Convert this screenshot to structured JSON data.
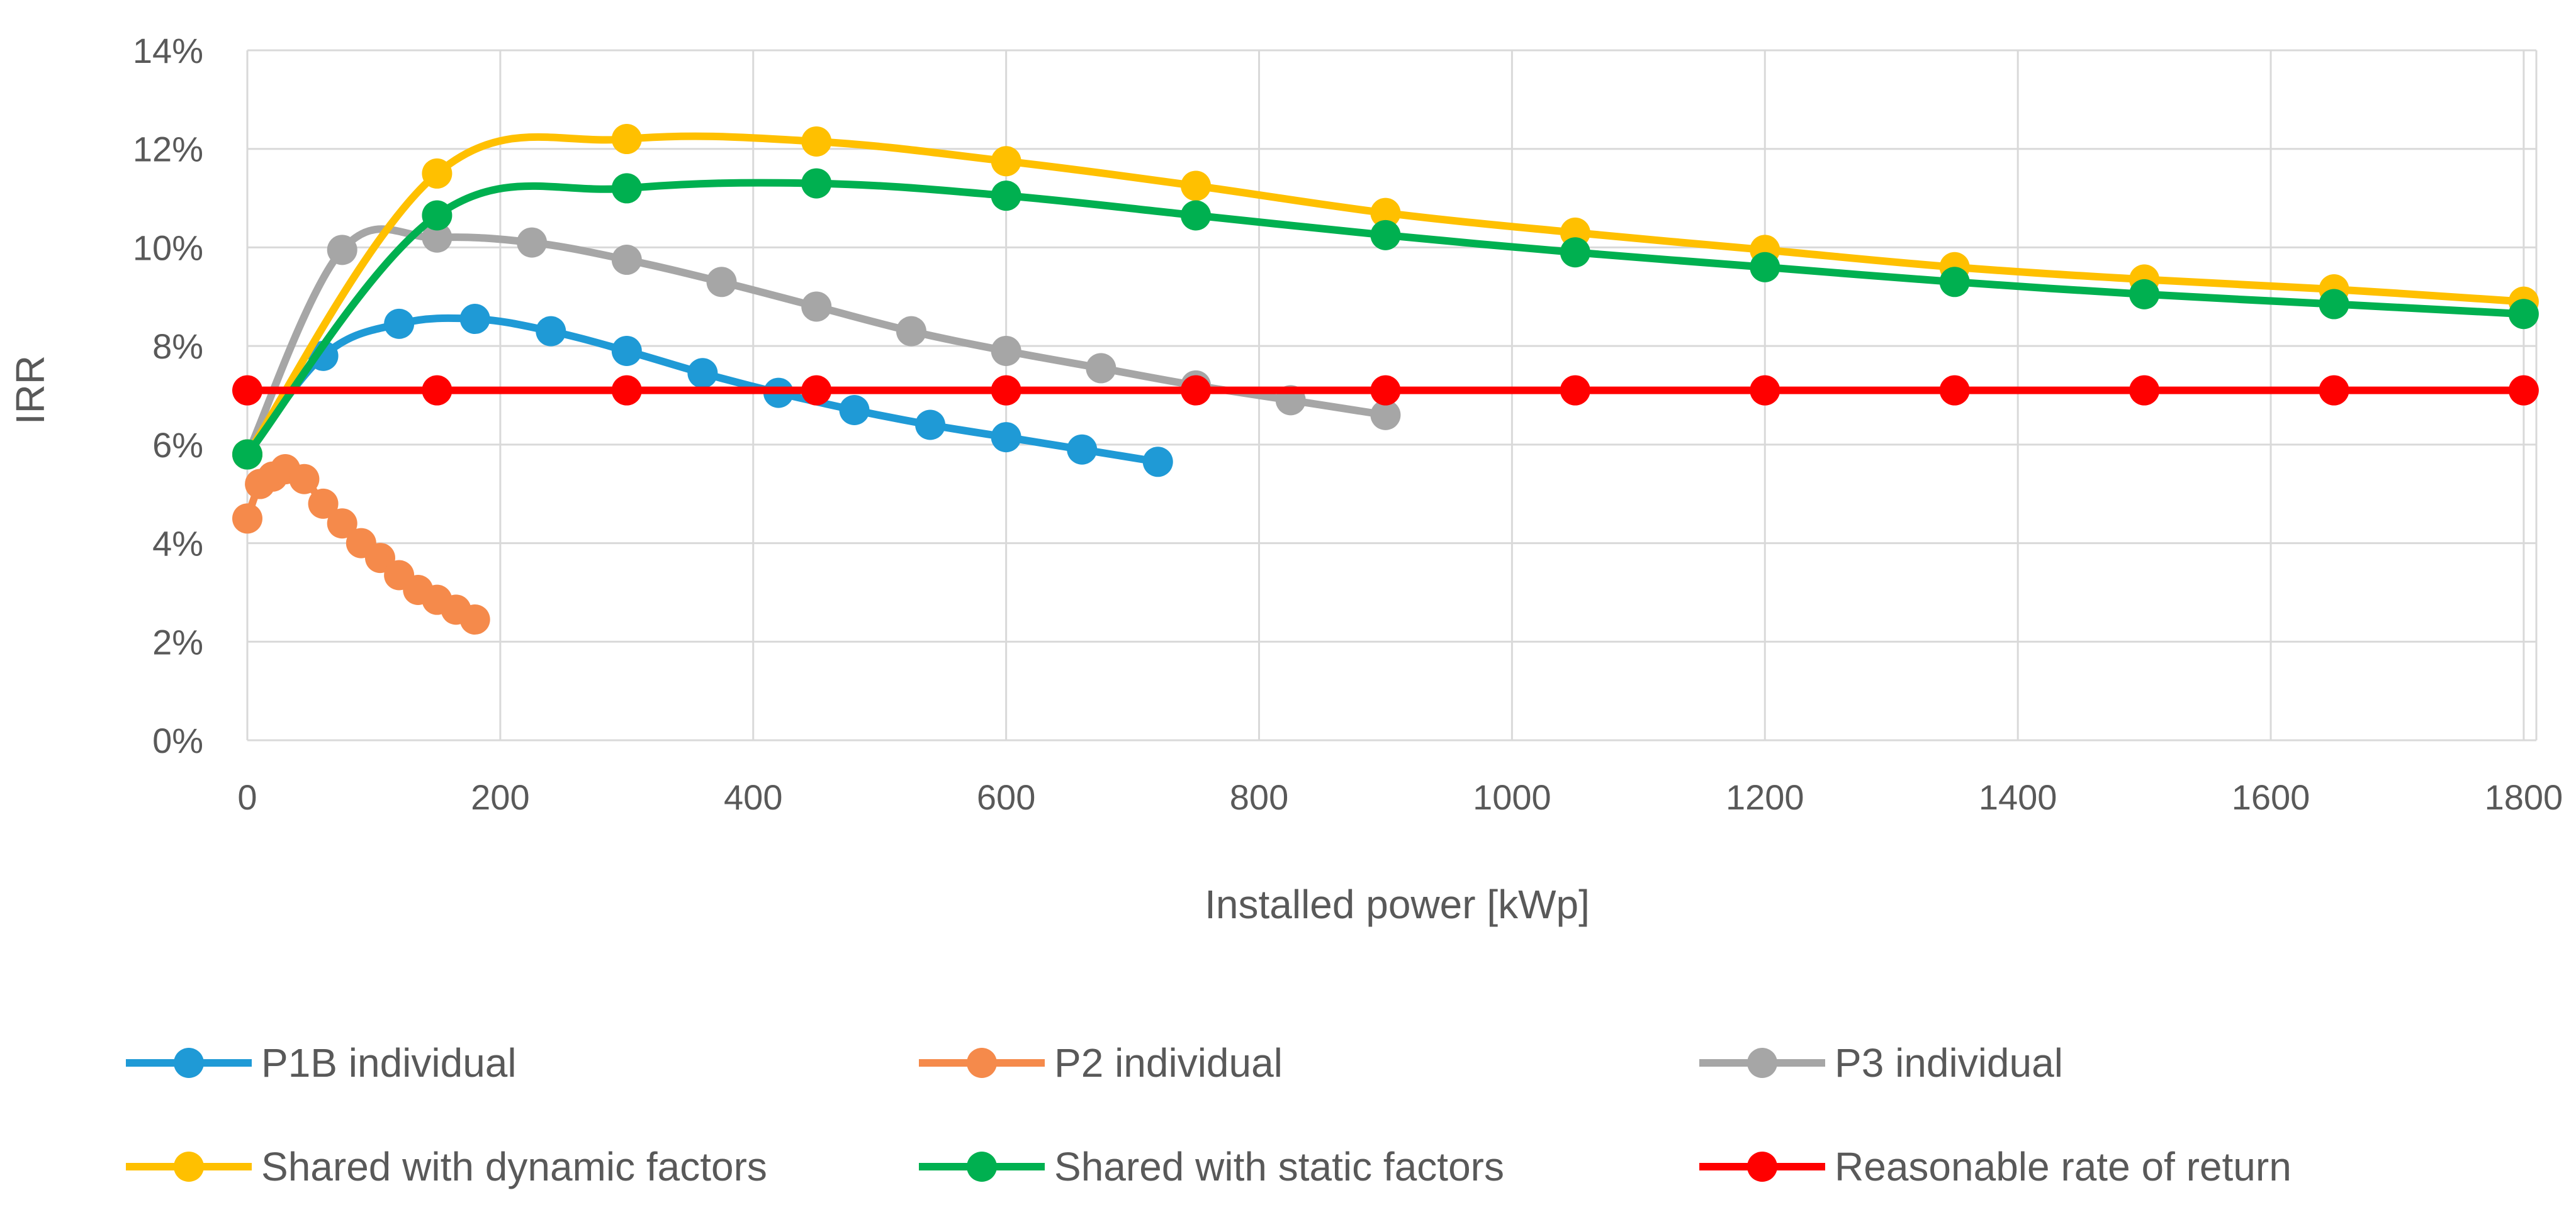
{
  "chart_data": {
    "type": "line",
    "title": "",
    "xlabel": "Installed power [kWp]",
    "ylabel": "IRR",
    "xlim": [
      0,
      1810
    ],
    "ylim": [
      0,
      14
    ],
    "x_ticks": [
      0,
      200,
      400,
      600,
      800,
      1000,
      1200,
      1400,
      1600,
      1800
    ],
    "y_ticks": [
      0,
      2,
      4,
      6,
      8,
      10,
      12,
      14
    ],
    "y_tick_suffix": "%",
    "grid": true,
    "legend_position": "bottom",
    "series": [
      {
        "name": "P1B individual",
        "color": "#1f9ad6",
        "x": [
          0,
          60,
          120,
          180,
          240,
          300,
          360,
          420,
          480,
          540,
          600,
          660,
          720
        ],
        "y": [
          5.8,
          7.8,
          8.45,
          8.55,
          8.3,
          7.9,
          7.45,
          7.05,
          6.7,
          6.4,
          6.15,
          5.9,
          5.65
        ]
      },
      {
        "name": "P2 individual",
        "color": "#f58a4b",
        "x": [
          0,
          10,
          20,
          30,
          45,
          60,
          75,
          90,
          105,
          120,
          135,
          150,
          165,
          180
        ],
        "y": [
          4.5,
          5.2,
          5.35,
          5.5,
          5.3,
          4.8,
          4.4,
          4.0,
          3.7,
          3.35,
          3.05,
          2.85,
          2.65,
          2.45
        ]
      },
      {
        "name": "P3 individual",
        "color": "#a6a6a6",
        "x": [
          0,
          75,
          150,
          225,
          300,
          375,
          450,
          525,
          600,
          675,
          750,
          825,
          900
        ],
        "y": [
          5.8,
          9.95,
          10.2,
          10.1,
          9.75,
          9.3,
          8.8,
          8.3,
          7.9,
          7.55,
          7.2,
          6.9,
          6.6
        ]
      },
      {
        "name": "Shared with dynamic factors",
        "color": "#ffc000",
        "x": [
          0,
          150,
          300,
          450,
          600,
          750,
          900,
          1050,
          1200,
          1350,
          1500,
          1650,
          1800
        ],
        "y": [
          5.8,
          11.5,
          12.2,
          12.15,
          11.75,
          11.25,
          10.7,
          10.3,
          9.95,
          9.6,
          9.35,
          9.15,
          8.9
        ]
      },
      {
        "name": "Shared with static factors",
        "color": "#00b050",
        "x": [
          0,
          150,
          300,
          450,
          600,
          750,
          900,
          1050,
          1200,
          1350,
          1500,
          1650,
          1800
        ],
        "y": [
          5.8,
          10.65,
          11.2,
          11.3,
          11.05,
          10.65,
          10.25,
          9.9,
          9.6,
          9.3,
          9.05,
          8.85,
          8.65
        ]
      },
      {
        "name": "Reasonable rate of return",
        "color": "#ff0000",
        "x": [
          0,
          150,
          300,
          450,
          600,
          750,
          900,
          1050,
          1200,
          1350,
          1500,
          1650,
          1800
        ],
        "y": [
          7.1,
          7.1,
          7.1,
          7.1,
          7.1,
          7.1,
          7.1,
          7.1,
          7.1,
          7.1,
          7.1,
          7.1,
          7.1
        ]
      }
    ]
  }
}
